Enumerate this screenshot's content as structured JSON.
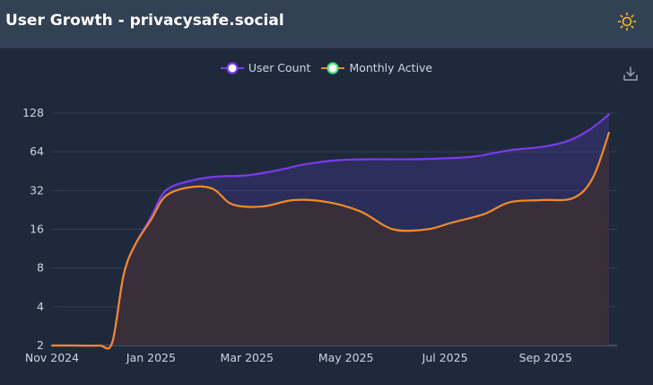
{
  "header": {
    "title": "User Growth - privacysafe.social",
    "theme_icon": "sun-icon"
  },
  "toolbar": {
    "download_icon": "download-icon"
  },
  "colors": {
    "background": "#1e293b",
    "header": "#334155",
    "user_count": "#7c3aed",
    "monthly_active": "#f08a2c",
    "grid": "#334155",
    "text": "#cbd5e1"
  },
  "chart_data": {
    "type": "area",
    "y_scale": "log2",
    "ylim": [
      2,
      128
    ],
    "y_ticks": [
      2,
      4,
      8,
      16,
      32,
      64,
      128
    ],
    "y_tick_labels": [
      "2",
      "4",
      "8",
      "16",
      "32",
      "64",
      "128"
    ],
    "x_range": [
      "2024-11-01",
      "2025-10-15"
    ],
    "x_ticks": [
      "2024-11-01",
      "2025-01-01",
      "2025-03-01",
      "2025-05-01",
      "2025-07-01",
      "2025-09-01"
    ],
    "x_tick_labels": [
      "Nov 2024",
      "Jan 2025",
      "Mar 2025",
      "May 2025",
      "Jul 2025",
      "Sep 2025"
    ],
    "legend": [
      "User Count",
      "Monthly Active"
    ],
    "series": [
      {
        "name": "User Count",
        "color": "#7c3aed",
        "points": [
          [
            "2024-11-01",
            2
          ],
          [
            "2024-11-15",
            2
          ],
          [
            "2024-11-30",
            2
          ],
          [
            "2024-12-08",
            2.1
          ],
          [
            "2024-12-15",
            7
          ],
          [
            "2024-12-22",
            12
          ],
          [
            "2025-01-01",
            20
          ],
          [
            "2025-01-10",
            32
          ],
          [
            "2025-01-25",
            38
          ],
          [
            "2025-02-10",
            41
          ],
          [
            "2025-03-01",
            42
          ],
          [
            "2025-03-20",
            46
          ],
          [
            "2025-04-05",
            51
          ],
          [
            "2025-04-25",
            55
          ],
          [
            "2025-05-15",
            56
          ],
          [
            "2025-06-10",
            56
          ],
          [
            "2025-07-01",
            57
          ],
          [
            "2025-07-20",
            59
          ],
          [
            "2025-08-10",
            66
          ],
          [
            "2025-08-30",
            70
          ],
          [
            "2025-09-15",
            78
          ],
          [
            "2025-09-28",
            95
          ],
          [
            "2025-10-10",
            125
          ]
        ]
      },
      {
        "name": "Monthly Active",
        "color": "#f08a2c",
        "points": [
          [
            "2024-11-01",
            2
          ],
          [
            "2024-11-15",
            2
          ],
          [
            "2024-11-30",
            2
          ],
          [
            "2024-12-08",
            2.1
          ],
          [
            "2024-12-15",
            7
          ],
          [
            "2024-12-22",
            12
          ],
          [
            "2025-01-01",
            19
          ],
          [
            "2025-01-10",
            29
          ],
          [
            "2025-01-25",
            34
          ],
          [
            "2025-02-08",
            33
          ],
          [
            "2025-02-20",
            25
          ],
          [
            "2025-03-10",
            24
          ],
          [
            "2025-03-30",
            27
          ],
          [
            "2025-04-20",
            26
          ],
          [
            "2025-05-10",
            22
          ],
          [
            "2025-05-30",
            16
          ],
          [
            "2025-06-20",
            16
          ],
          [
            "2025-07-05",
            18
          ],
          [
            "2025-07-25",
            21
          ],
          [
            "2025-08-10",
            26
          ],
          [
            "2025-08-30",
            27
          ],
          [
            "2025-09-18",
            28
          ],
          [
            "2025-09-30",
            40
          ],
          [
            "2025-10-10",
            90
          ]
        ]
      }
    ]
  }
}
